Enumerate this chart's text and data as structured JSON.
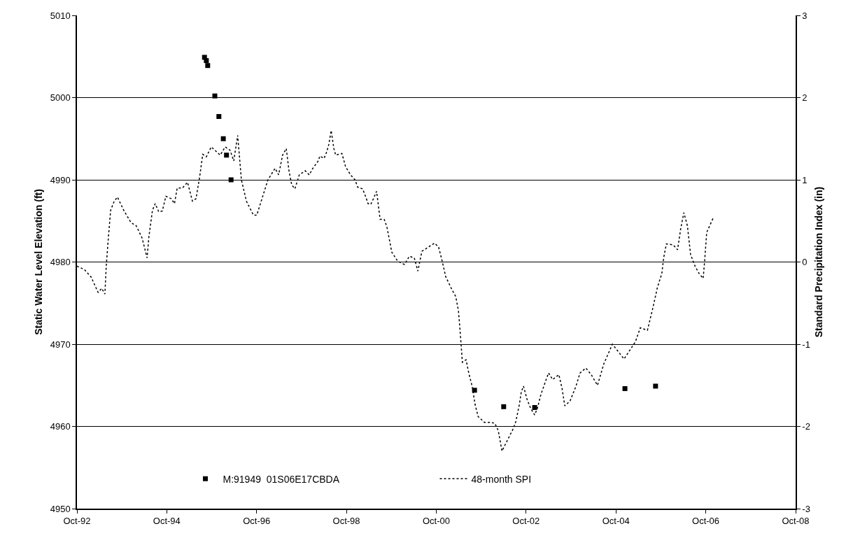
{
  "chart_data": {
    "type": "scatter",
    "ylabel": "Static Water Level Elevation (ft)",
    "y2label": "Standard Precipitation Index (in)",
    "xlim": [
      "1992-10-01",
      "2008-10-01"
    ],
    "xticks": [
      {
        "value": "1992-10-01",
        "label": "Oct-92"
      },
      {
        "value": "1994-10-01",
        "label": "Oct-94"
      },
      {
        "value": "1996-10-01",
        "label": "Oct-96"
      },
      {
        "value": "1998-10-01",
        "label": "Oct-98"
      },
      {
        "value": "2000-10-01",
        "label": "Oct-00"
      },
      {
        "value": "2002-10-01",
        "label": "Oct-02"
      },
      {
        "value": "2004-10-01",
        "label": "Oct-04"
      },
      {
        "value": "2006-10-01",
        "label": "Oct-06"
      },
      {
        "value": "2008-10-01",
        "label": "Oct-08"
      }
    ],
    "ylim": [
      4950,
      5010
    ],
    "yticks": [
      4950,
      4960,
      4970,
      4980,
      4990,
      5000,
      5010
    ],
    "y2lim": [
      -3,
      3
    ],
    "y2ticks": [
      -3,
      -2,
      -1,
      0,
      1,
      2,
      3
    ],
    "grid": "y",
    "legend": "bottom",
    "series": [
      {
        "name": "M:91949  01S06E17CBDA",
        "marker": "square",
        "color": "#000000",
        "x": [
          "1995-08-04",
          "1995-08-19",
          "1995-08-30",
          "1995-10-27",
          "1995-11-29",
          "1996-01-04",
          "1996-01-30",
          "1996-03-07",
          "2001-08-08",
          "2002-04-02",
          "2002-12-10",
          "2004-12-13",
          "2005-08-19"
        ],
        "values": [
          5004.9,
          5004.5,
          5003.9,
          5000.2,
          4997.7,
          4995.0,
          4993.0,
          4990.0,
          4964.4,
          4962.4,
          4962.3,
          4964.6,
          4964.9
        ]
      },
      {
        "name": "48-month SPI",
        "type": "line",
        "axis": "y2",
        "line_style": "dotted",
        "color": "#000000",
        "x": [
          "1992-10-01",
          "1992-11-29",
          "1993-01-23",
          "1993-03-22",
          "1993-04-20",
          "1993-05-16",
          "1993-05-27",
          "1993-06-14",
          "1993-07-02",
          "1993-07-31",
          "1993-08-26",
          "1993-10-16",
          "1993-12-14",
          "1994-01-26",
          "1994-03-15",
          "1994-04-24",
          "1994-05-09",
          "1994-06-07",
          "1994-06-29",
          "1994-07-28",
          "1994-08-26",
          "1994-09-24",
          "1994-11-07",
          "1994-12-03",
          "1994-12-25",
          "1995-02-06",
          "1995-03-19",
          "1995-04-28",
          "1995-05-27",
          "1995-06-25",
          "1995-07-21",
          "1995-08-19",
          "1995-09-28",
          "1995-12-10",
          "1996-01-19",
          "1996-02-28",
          "1996-03-29",
          "1996-04-30",
          "1996-05-11",
          "1996-05-30",
          "1996-07-10",
          "1996-09-05",
          "1996-10-02",
          "1996-11-07",
          "1997-01-01",
          "1997-02-28",
          "1997-03-29",
          "1997-04-30",
          "1997-05-30",
          "1997-06-21",
          "1997-07-13",
          "1997-08-08",
          "1997-09-13",
          "1997-10-31",
          "1997-12-03",
          "1998-01-01",
          "1998-02-10",
          "1998-02-28",
          "1998-04-02",
          "1998-04-24",
          "1998-05-11",
          "1998-05-30",
          "1998-06-21",
          "1998-07-06",
          "1998-08-26",
          "1998-09-24",
          "1998-11-04",
          "1998-12-10",
          "1999-01-01",
          "1999-02-10",
          "1999-03-08",
          "1999-03-26",
          "1999-04-17",
          "1999-05-12",
          "1999-06-03",
          "1999-06-18",
          "1999-07-02",
          "1999-08-04",
          "1999-08-26",
          "1999-09-17",
          "1999-10-05",
          "1999-11-22",
          "2000-01-16",
          "2000-02-25",
          "2000-04-05",
          "2000-05-04",
          "2000-06-06",
          "2000-07-27",
          "2000-09-17",
          "2000-10-20",
          "2000-11-18",
          "2000-12-17",
          "2001-02-03",
          "2001-03-08",
          "2001-03-30",
          "2001-04-10",
          "2001-04-21",
          "2001-05-01",
          "2001-05-31",
          "2001-06-22",
          "2001-07-21",
          "2001-08-12",
          "2001-09-06",
          "2001-10-27",
          "2001-12-10",
          "2002-01-19",
          "2002-02-17",
          "2002-03-19",
          "2002-06-18",
          "2002-07-10",
          "2002-08-08",
          "2002-08-23",
          "2002-09-10",
          "2002-10-09",
          "2002-11-07",
          "2002-12-10",
          "2003-01-01",
          "2003-01-30",
          "2003-03-11",
          "2003-04-02",
          "2003-05-05",
          "2003-06-25",
          "2003-07-21",
          "2003-08-12",
          "2003-09-24",
          "2003-11-11",
          "2003-12-14",
          "2004-01-30",
          "2004-03-14",
          "2004-05-04",
          "2004-06-24",
          "2004-09-02",
          "2004-12-06",
          "2005-03-08",
          "2005-04-17",
          "2005-06-14",
          "2005-07-28",
          "2005-09-03",
          "2005-10-09",
          "2005-10-24",
          "2005-11-15",
          "2006-01-08",
          "2006-02-14",
          "2006-03-11",
          "2006-04-06",
          "2006-05-05",
          "2006-05-31",
          "2006-07-06",
          "2006-08-08",
          "2006-09-10",
          "2006-09-21",
          "2006-10-09",
          "2006-11-29"
        ],
        "values": [
          -0.05,
          -0.09,
          -0.18,
          -0.37,
          -0.32,
          -0.39,
          -0.05,
          0.31,
          0.63,
          0.74,
          0.79,
          0.63,
          0.48,
          0.44,
          0.29,
          0.05,
          0.31,
          0.63,
          0.71,
          0.61,
          0.62,
          0.8,
          0.77,
          0.71,
          0.9,
          0.9,
          0.97,
          0.74,
          0.77,
          1.03,
          1.31,
          1.28,
          1.4,
          1.3,
          1.4,
          1.36,
          1.23,
          1.54,
          1.34,
          1.0,
          0.74,
          0.57,
          0.57,
          0.74,
          1.0,
          1.14,
          1.06,
          1.3,
          1.38,
          1.11,
          0.94,
          0.89,
          1.06,
          1.11,
          1.06,
          1.14,
          1.22,
          1.29,
          1.26,
          1.34,
          1.43,
          1.6,
          1.38,
          1.3,
          1.32,
          1.16,
          1.06,
          1.0,
          0.91,
          0.89,
          0.79,
          0.71,
          0.7,
          0.78,
          0.86,
          0.69,
          0.52,
          0.52,
          0.43,
          0.26,
          0.12,
          0.01,
          -0.03,
          0.07,
          0.05,
          -0.11,
          0.13,
          0.18,
          0.23,
          0.18,
          0.01,
          -0.18,
          -0.33,
          -0.42,
          -0.59,
          -0.79,
          -1.01,
          -1.22,
          -1.19,
          -1.35,
          -1.52,
          -1.73,
          -1.88,
          -1.95,
          -1.95,
          -1.96,
          -2.05,
          -2.3,
          -2.03,
          -1.94,
          -1.73,
          -1.58,
          -1.51,
          -1.67,
          -1.78,
          -1.86,
          -1.78,
          -1.61,
          -1.44,
          -1.35,
          -1.43,
          -1.37,
          -1.54,
          -1.75,
          -1.69,
          -1.51,
          -1.35,
          -1.29,
          -1.37,
          -1.5,
          -1.24,
          -1.0,
          -1.18,
          -0.97,
          -0.8,
          -0.83,
          -0.56,
          -0.31,
          -0.14,
          0.05,
          0.22,
          0.21,
          0.15,
          0.4,
          0.6,
          0.44,
          0.09,
          -0.05,
          -0.14,
          -0.2,
          -0.01,
          0.36,
          0.53
        ]
      }
    ]
  }
}
